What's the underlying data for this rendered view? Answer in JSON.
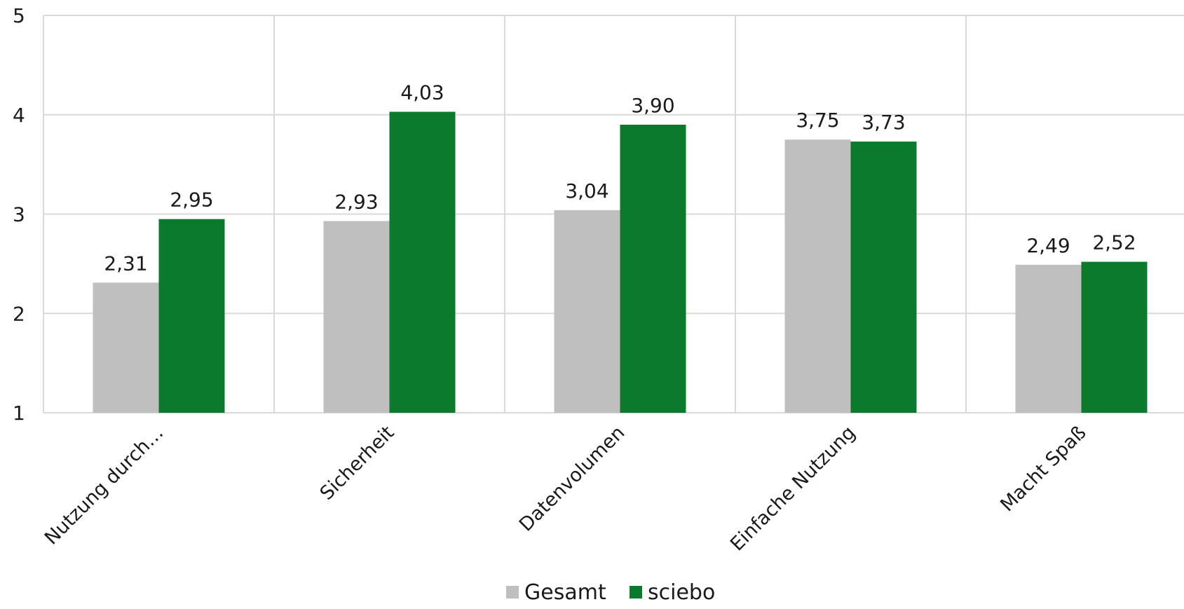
{
  "chart_data": {
    "type": "bar",
    "categories": [
      "Nutzung durch…",
      "Sicherheit",
      "Datenvolumen",
      "Einfache Nutzung",
      "Macht Spaß"
    ],
    "series": [
      {
        "name": "Gesamt",
        "color": "#bfbfbf",
        "values": [
          2.31,
          2.93,
          3.04,
          3.75,
          2.49
        ],
        "labels": [
          "2,31",
          "2,93",
          "3,04",
          "3,75",
          "2,49"
        ]
      },
      {
        "name": "sciebo",
        "color": "#0b7a2c",
        "values": [
          2.95,
          4.03,
          3.9,
          3.73,
          2.52
        ],
        "labels": [
          "2,95",
          "4,03",
          "3,90",
          "3,73",
          "2,52"
        ]
      }
    ],
    "ylim": [
      1,
      5
    ],
    "yticks": [
      1,
      2,
      3,
      4,
      5
    ],
    "ytick_labels": [
      "1",
      "2",
      "3",
      "4",
      "5"
    ],
    "grid": true,
    "legend": "bottom-center",
    "title": "",
    "xlabel": "",
    "ylabel": ""
  },
  "colors": {
    "grid": "#d9d9d9",
    "text": "#1a1a1a"
  }
}
